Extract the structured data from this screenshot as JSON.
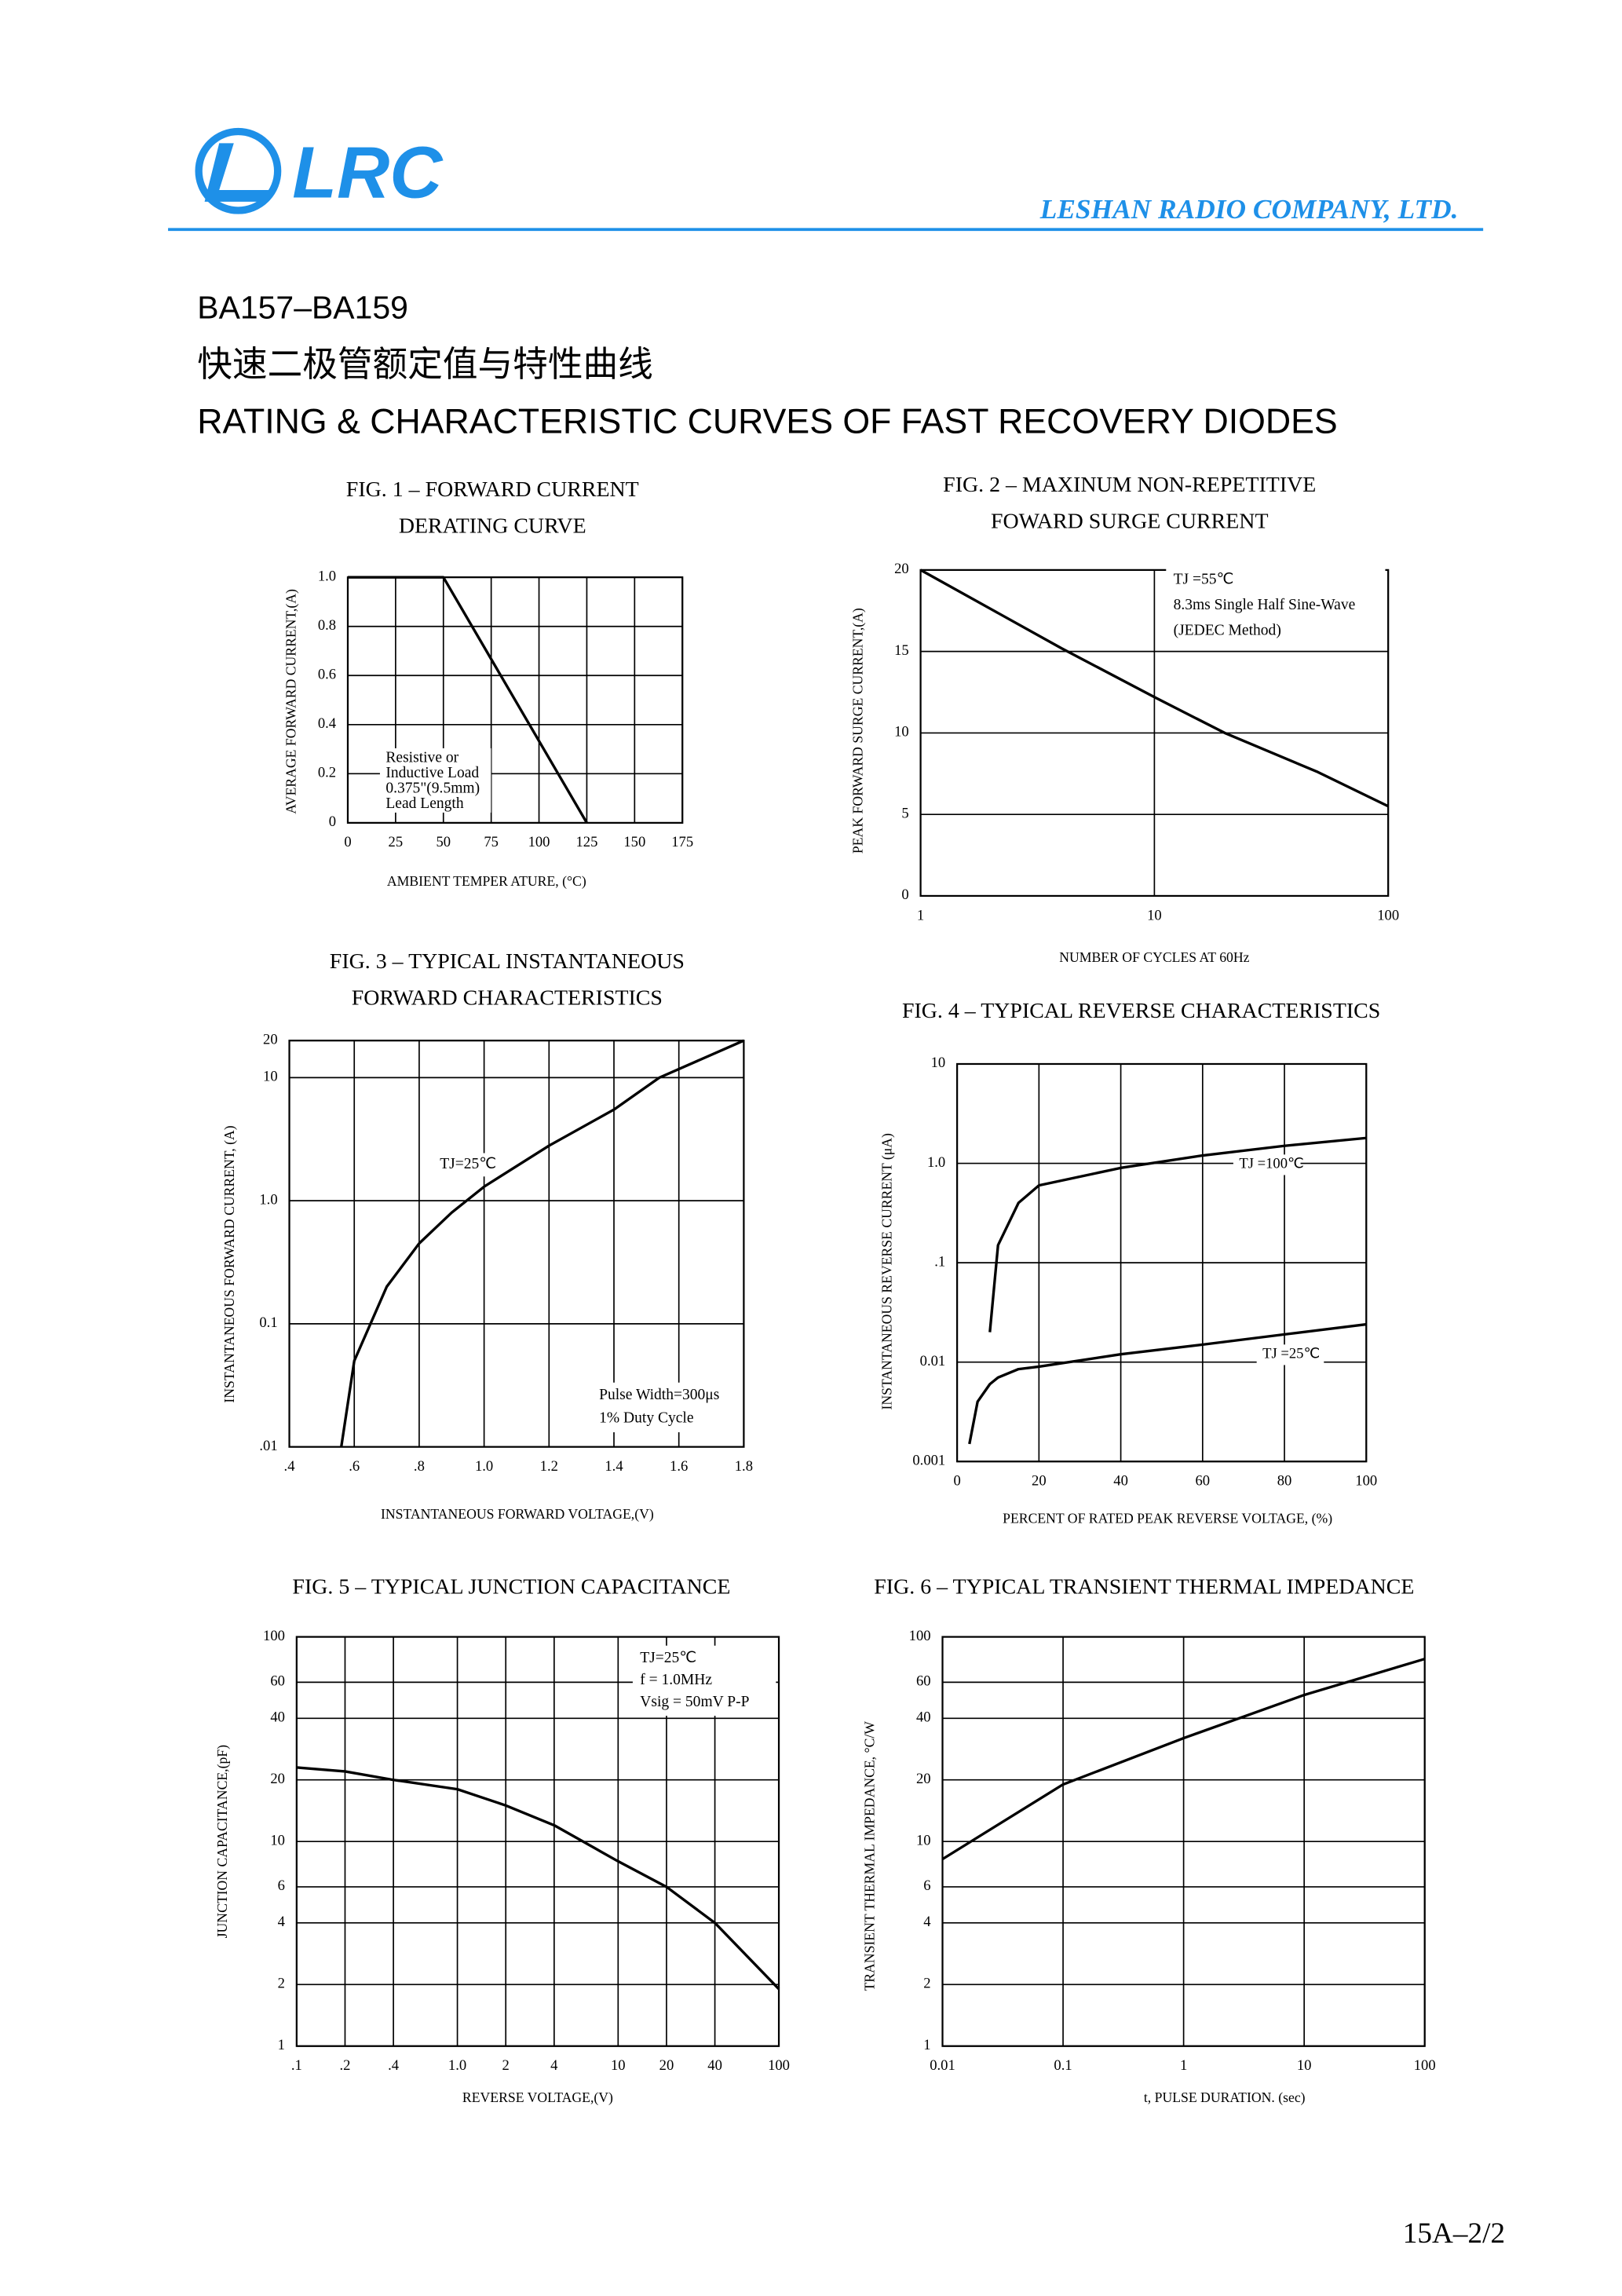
{
  "header": {
    "logo": "LRC",
    "company": "LESHAN RADIO COMPANY, LTD.",
    "part": "BA157–BA159",
    "title_cn": "快速二极管额定值与特性曲线",
    "title_en": "RATING & CHARACTERISTIC CURVES OF FAST RECOVERY DIODES"
  },
  "chart_data": [
    {
      "type": "line",
      "title": [
        "FIG. 1 – FORWARD CURRENT",
        "DERATING CURVE"
      ],
      "x_label": "AMBIENT TEMPER ATURE, (°C)",
      "y_label": "AVERAGE FORWARD CURRENT,(A)",
      "x": [
        0,
        50,
        125
      ],
      "series": [
        {
          "color": "#000000",
          "values": [
            1,
            1,
            0
          ]
        }
      ],
      "xlim": [
        0,
        175
      ],
      "xticks": [
        0,
        25,
        50,
        75,
        100,
        125,
        150,
        175
      ],
      "ylim": [
        0,
        1
      ],
      "yticks": [
        0,
        0.2,
        0.4,
        0.6,
        0.8,
        {
          "value": 1,
          "label": "1.0"
        }
      ],
      "grid": true,
      "annotations": [
        "Resistive or",
        "Inductive Load",
        "0.375\"(9.5mm)",
        "Lead Length"
      ]
    },
    {
      "type": "line",
      "title": [
        "FIG. 2 – MAXINUM NON-REPETITIVE",
        "FOWARD SURGE CURRENT"
      ],
      "x_label": "NUMBER OF CYCLES AT 60Hz",
      "y_label": "PEAK FORWARD SURGE CURRENT,(A)",
      "x": [
        1,
        2,
        4,
        10,
        20,
        50,
        100
      ],
      "series": [
        {
          "color": "#000000",
          "values": [
            20,
            17.6,
            15.2,
            12.2,
            10,
            7.6,
            5.5
          ]
        }
      ],
      "xscale": "log",
      "xlim": [
        1,
        100
      ],
      "xticks": [
        1,
        10,
        100
      ],
      "ylim": [
        0,
        20
      ],
      "yticks": [
        0,
        5,
        10,
        15,
        20
      ],
      "grid": true,
      "annotations": [
        "TJ =55℃",
        "8.3ms Single Half Sine-Wave",
        "(JEDEC Method)"
      ]
    },
    {
      "type": "line",
      "title": [
        "FIG. 3 – TYPICAL INSTANTANEOUS",
        "FORWARD CHARACTERISTICS"
      ],
      "x_label": "INSTANTANEOUS FORWARD VOLTAGE,(V)",
      "y_label": "INSTANTANEOUS FORWARD CURRENT, (A)",
      "x": [
        0.56,
        0.6,
        0.7,
        0.8,
        0.9,
        1.0,
        1.2,
        1.4,
        1.54,
        1.8
      ],
      "series": [
        {
          "color": "#000000",
          "values": [
            0.01,
            0.05,
            0.2,
            0.45,
            0.8,
            1.3,
            2.8,
            5.5,
            10,
            20
          ]
        }
      ],
      "xlim": [
        0.4,
        1.8
      ],
      "xticks": [
        {
          "value": 0.4,
          "label": ".4"
        },
        {
          "value": 0.6,
          "label": ".6"
        },
        {
          "value": 0.8,
          "label": ".8"
        },
        {
          "value": 1,
          "label": "1.0"
        },
        1.2,
        1.4,
        1.6,
        1.8
      ],
      "yscale": "log",
      "ylim": [
        0.01,
        20
      ],
      "yticks": [
        {
          "value": 0.01,
          "label": ".01"
        },
        0.1,
        {
          "value": 1,
          "label": "1.0"
        },
        10,
        20
      ],
      "grid": true,
      "annotations": [
        "TJ=25℃",
        "Pulse Width=300μs",
        "1% Duty Cycle"
      ]
    },
    {
      "type": "line",
      "title": [
        "FIG. 4 – TYPICAL REVERSE CHARACTERISTICS"
      ],
      "x_label": "PERCENT OF RATED PEAK REVERSE VOLTAGE, (%)",
      "y_label": "INSTANTANEOUS REVERSE CURRENT (μA)",
      "x": [
        3,
        5,
        8,
        10,
        15,
        20,
        40,
        60,
        80,
        100
      ],
      "series": [
        {
          "name": "TJ =100℃",
          "color": "#000000",
          "values": [
            null,
            null,
            0.02,
            0.15,
            0.4,
            0.6,
            0.9,
            1.2,
            1.5,
            1.8
          ]
        },
        {
          "name": "TJ =25℃",
          "color": "#000000",
          "values": [
            0.0015,
            0.004,
            0.006,
            0.007,
            0.0085,
            0.009,
            0.012,
            0.015,
            0.019,
            0.024
          ]
        }
      ],
      "xlim": [
        0,
        100
      ],
      "xticks": [
        0,
        20,
        40,
        60,
        80,
        100
      ],
      "yscale": "log",
      "ylim": [
        0.001,
        10
      ],
      "yticks": [
        0.001,
        0.01,
        {
          "value": 0.1,
          "label": ".1"
        },
        {
          "value": 1,
          "label": "1.0"
        },
        10
      ],
      "grid": true
    },
    {
      "type": "line",
      "title": [
        "FIG. 5 – TYPICAL JUNCTION CAPACITANCE"
      ],
      "x_label": "REVERSE VOLTAGE,(V)",
      "y_label": "JUNCTION CAPACITANCE,(pF)",
      "x": [
        0.1,
        0.2,
        0.4,
        1,
        2,
        4,
        10,
        20,
        40,
        100
      ],
      "series": [
        {
          "color": "#000000",
          "values": [
            23,
            22,
            20,
            18,
            15,
            12,
            8,
            6,
            4,
            1.9
          ]
        }
      ],
      "xscale": "log",
      "xlim": [
        0.1,
        100
      ],
      "xticks": [
        {
          "value": 0.1,
          "label": ".1"
        },
        {
          "value": 0.2,
          "label": ".2"
        },
        {
          "value": 0.4,
          "label": ".4"
        },
        {
          "value": 1,
          "label": "1.0"
        },
        2,
        4,
        10,
        20,
        40,
        100
      ],
      "yscale": "log",
      "ylim": [
        1,
        100
      ],
      "yticks": [
        1,
        2,
        4,
        6,
        10,
        20,
        40,
        60,
        100
      ],
      "grid": true,
      "annotations": [
        "TJ=25℃",
        "f = 1.0MHz",
        "Vsig = 50mV P-P"
      ]
    },
    {
      "type": "line",
      "title": [
        "FIG. 6 – TYPICAL TRANSIENT THERMAL IMPEDANCE"
      ],
      "x_label": "t, PULSE DURATION. (sec)",
      "y_label": "TRANSIENT THERMAL IMPEDANCE, °C/W",
      "x": [
        0.01,
        0.1,
        1,
        10,
        100
      ],
      "series": [
        {
          "color": "#000000",
          "values": [
            8.2,
            19,
            32,
            52,
            78
          ]
        }
      ],
      "xscale": "log",
      "xlim": [
        0.01,
        100
      ],
      "xticks": [
        0.01,
        0.1,
        1,
        10,
        100
      ],
      "yscale": "log",
      "ylim": [
        1,
        100
      ],
      "yticks": [
        1,
        2,
        4,
        6,
        10,
        20,
        40,
        60,
        100
      ],
      "grid": true
    }
  ],
  "footer": {
    "page": "15A–2/2"
  }
}
